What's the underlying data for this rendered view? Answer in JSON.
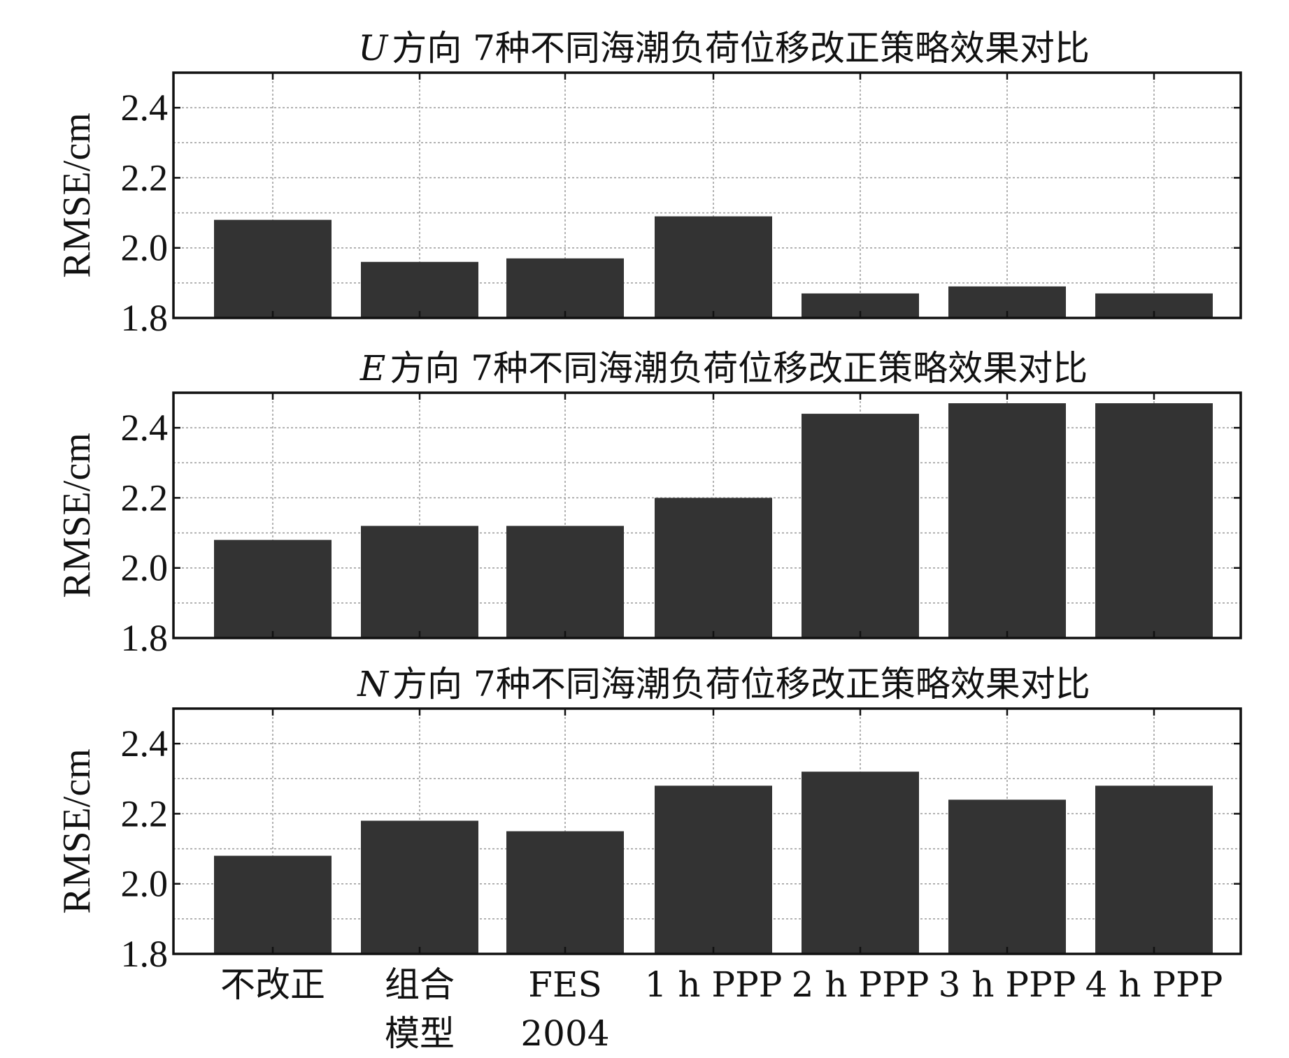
{
  "colors": {
    "bar": "#333333",
    "frame": "#111111",
    "grid": "#9a9a9a"
  },
  "chart_data": [
    {
      "type": "bar",
      "title_dir": "U",
      "title_rest": "方向 7种不同海潮负荷位移改正策略效果对比",
      "ylabel": "RMSE/cm",
      "ylim": [
        1.8,
        2.5
      ],
      "yticks": [
        "1.8",
        "2.0",
        "2.2",
        "2.4"
      ],
      "grid": true,
      "categories": [
        "不改正",
        "组合模型",
        "FES 2004",
        "1 h PPP",
        "2 h PPP",
        "3 h PPP",
        "4 h PPP"
      ],
      "values": [
        2.08,
        1.96,
        1.97,
        2.09,
        1.87,
        1.89,
        1.87
      ]
    },
    {
      "type": "bar",
      "title_dir": "E",
      "title_rest": "方向 7种不同海潮负荷位移改正策略效果对比",
      "ylabel": "RMSE/cm",
      "ylim": [
        1.8,
        2.5
      ],
      "yticks": [
        "1.8",
        "2.0",
        "2.2",
        "2.4"
      ],
      "grid": true,
      "categories": [
        "不改正",
        "组合模型",
        "FES 2004",
        "1 h PPP",
        "2 h PPP",
        "3 h PPP",
        "4 h PPP"
      ],
      "values": [
        2.08,
        2.12,
        2.12,
        2.2,
        2.44,
        2.47,
        2.47
      ]
    },
    {
      "type": "bar",
      "title_dir": "N",
      "title_rest": "方向 7种不同海潮负荷位移改正策略效果对比",
      "ylabel": "RMSE/cm",
      "ylim": [
        1.8,
        2.5
      ],
      "yticks": [
        "1.8",
        "2.0",
        "2.2",
        "2.4"
      ],
      "grid": true,
      "categories": [
        "不改正",
        "组合模型",
        "FES 2004",
        "1 h PPP",
        "2 h PPP",
        "3 h PPP",
        "4 h PPP"
      ],
      "values": [
        2.08,
        2.18,
        2.15,
        2.28,
        2.32,
        2.24,
        2.28
      ]
    }
  ],
  "x_tick_labels": [
    {
      "line1": "不改正",
      "line2": ""
    },
    {
      "line1": "组合",
      "line2": "模型"
    },
    {
      "line1": "FES",
      "line2": "2004"
    },
    {
      "line1": "1 h PPP",
      "line2": ""
    },
    {
      "line1": "2 h PPP",
      "line2": ""
    },
    {
      "line1": "3 h PPP",
      "line2": ""
    },
    {
      "line1": "4 h PPP",
      "line2": ""
    }
  ]
}
